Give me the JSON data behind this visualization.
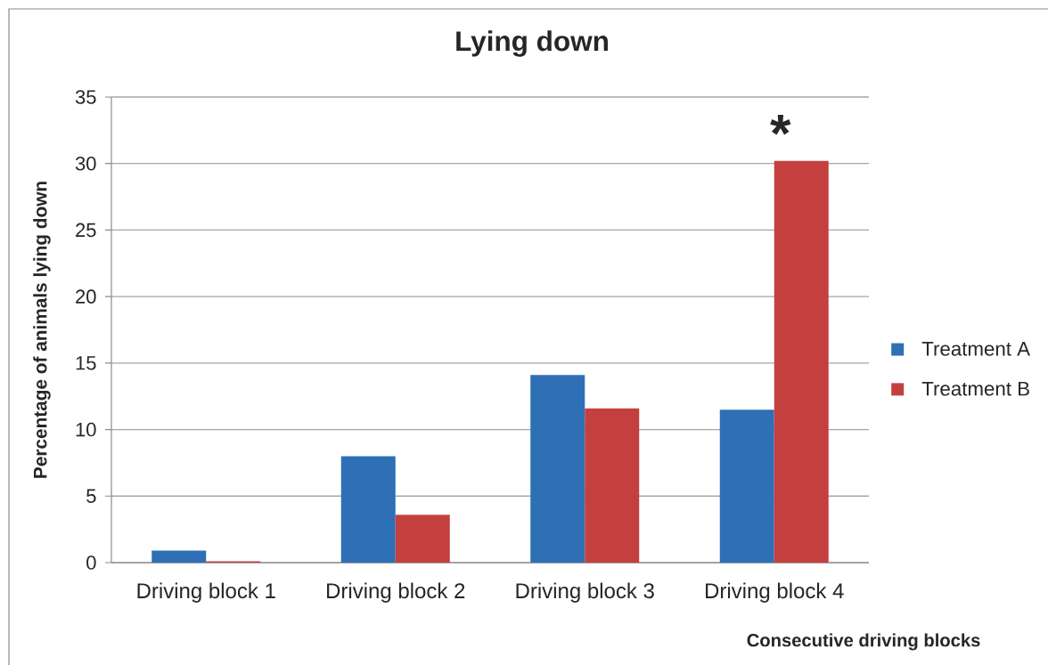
{
  "chart_data": {
    "type": "bar",
    "title": "Lying down",
    "xlabel": "Consecutive driving blocks",
    "ylabel": "Percentage of animals lying down",
    "categories": [
      "Driving block 1",
      "Driving block 2",
      "Driving block 3",
      "Driving block 4"
    ],
    "series": [
      {
        "name": "Treatment A",
        "color": "#2e6fb5",
        "values": [
          0.9,
          8.0,
          14.1,
          11.5
        ]
      },
      {
        "name": "Treatment B",
        "color": "#c3403f",
        "values": [
          0.1,
          3.6,
          11.6,
          30.2
        ]
      }
    ],
    "ylim": [
      0,
      35
    ],
    "yticks": [
      0,
      5,
      10,
      15,
      20,
      25,
      30,
      35
    ],
    "grid": "y",
    "legend": "right",
    "annotations": [
      "*"
    ]
  }
}
